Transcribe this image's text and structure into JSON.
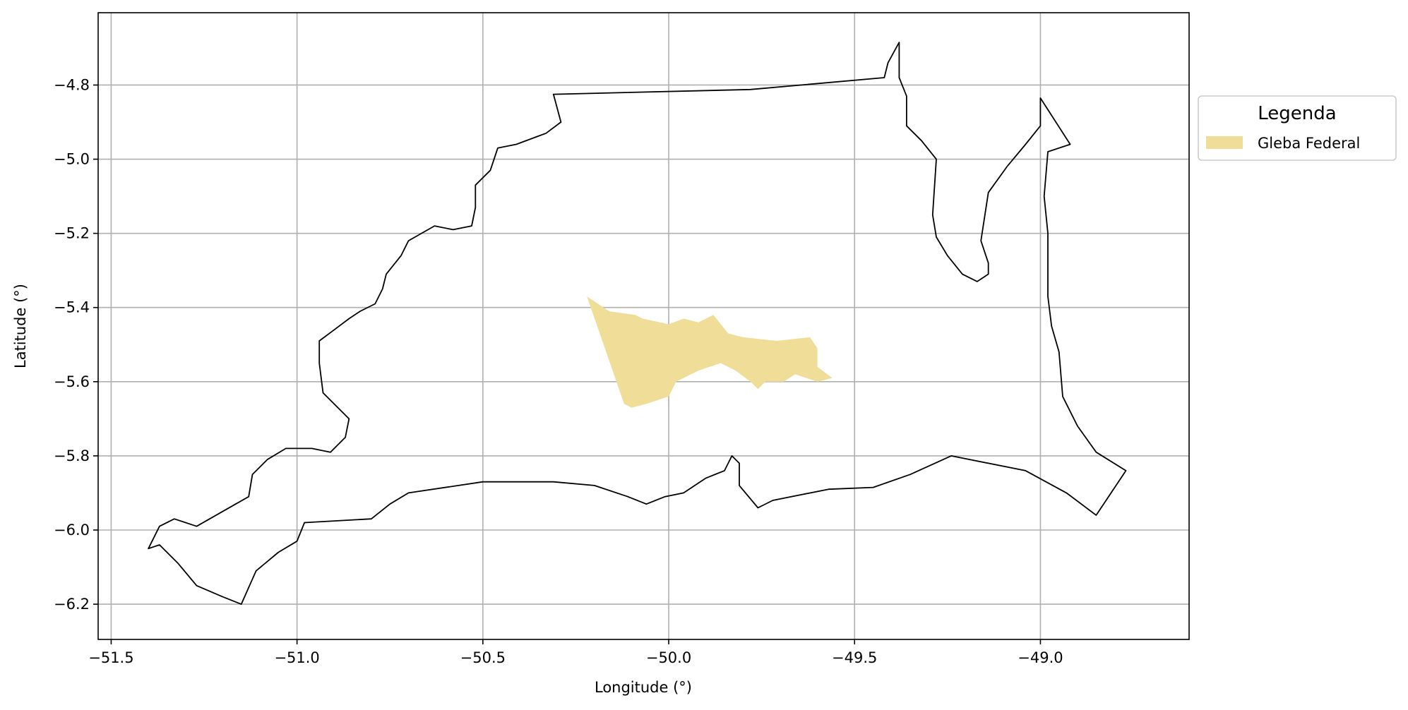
{
  "chart_data": {
    "type": "map",
    "xlabel": "Longitude (°)",
    "ylabel": "Latitude (°)",
    "xlim": [
      -51.535,
      -48.6
    ],
    "ylim": [
      -6.295,
      -4.605
    ],
    "grid": true,
    "xticks": [
      -51.5,
      -51.0,
      -50.5,
      -50.0,
      -49.5,
      -49.0
    ],
    "xtick_labels": [
      "−51.5",
      "−51.0",
      "−50.5",
      "−50.0",
      "−49.5",
      "−49.0"
    ],
    "yticks": [
      -4.8,
      -5.0,
      -5.2,
      -5.4,
      -5.6,
      -5.8,
      -6.0,
      -6.2
    ],
    "ytick_labels": [
      "−4.8",
      "−5.0",
      "−5.2",
      "−5.4",
      "−5.6",
      "−5.8",
      "−6.0",
      "−6.2"
    ],
    "legend": {
      "title": "Legenda",
      "placement": "outside-right-top",
      "entries": [
        {
          "label": "Gleba Federal",
          "color": "#efdd98"
        }
      ]
    },
    "boundary": {
      "color": "#000000",
      "coordinates": [
        [
          -50.31,
          -4.825
        ],
        [
          -49.78,
          -4.812
        ],
        [
          -49.42,
          -4.78
        ],
        [
          -49.41,
          -4.74
        ],
        [
          -49.38,
          -4.685
        ],
        [
          -49.38,
          -4.78
        ],
        [
          -49.36,
          -4.83
        ],
        [
          -49.36,
          -4.91
        ],
        [
          -49.32,
          -4.95
        ],
        [
          -49.28,
          -5.0
        ],
        [
          -49.29,
          -5.15
        ],
        [
          -49.28,
          -5.21
        ],
        [
          -49.25,
          -5.26
        ],
        [
          -49.21,
          -5.31
        ],
        [
          -49.17,
          -5.33
        ],
        [
          -49.14,
          -5.31
        ],
        [
          -49.14,
          -5.28
        ],
        [
          -49.16,
          -5.22
        ],
        [
          -49.14,
          -5.09
        ],
        [
          -49.09,
          -5.02
        ],
        [
          -49.04,
          -4.96
        ],
        [
          -49.0,
          -4.91
        ],
        [
          -49.0,
          -4.835
        ],
        [
          -48.92,
          -4.96
        ],
        [
          -48.98,
          -4.98
        ],
        [
          -48.99,
          -5.1
        ],
        [
          -48.98,
          -5.2
        ],
        [
          -48.98,
          -5.28
        ],
        [
          -48.98,
          -5.37
        ],
        [
          -48.97,
          -5.45
        ],
        [
          -48.95,
          -5.52
        ],
        [
          -48.94,
          -5.64
        ],
        [
          -48.9,
          -5.72
        ],
        [
          -48.85,
          -5.79
        ],
        [
          -48.77,
          -5.84
        ],
        [
          -48.85,
          -5.96
        ],
        [
          -48.93,
          -5.9
        ],
        [
          -49.04,
          -5.84
        ],
        [
          -49.24,
          -5.8
        ],
        [
          -49.35,
          -5.85
        ],
        [
          -49.45,
          -5.885
        ],
        [
          -49.57,
          -5.89
        ],
        [
          -49.72,
          -5.92
        ],
        [
          -49.76,
          -5.94
        ],
        [
          -49.81,
          -5.88
        ],
        [
          -49.81,
          -5.82
        ],
        [
          -49.83,
          -5.8
        ],
        [
          -49.85,
          -5.84
        ],
        [
          -49.9,
          -5.86
        ],
        [
          -49.96,
          -5.9
        ],
        [
          -50.01,
          -5.91
        ],
        [
          -50.06,
          -5.93
        ],
        [
          -50.11,
          -5.91
        ],
        [
          -50.2,
          -5.88
        ],
        [
          -50.31,
          -5.87
        ],
        [
          -50.5,
          -5.87
        ],
        [
          -50.7,
          -5.9
        ],
        [
          -50.75,
          -5.93
        ],
        [
          -50.8,
          -5.97
        ],
        [
          -50.98,
          -5.98
        ],
        [
          -51.0,
          -6.03
        ],
        [
          -51.05,
          -6.06
        ],
        [
          -51.11,
          -6.11
        ],
        [
          -51.15,
          -6.2
        ],
        [
          -51.2,
          -6.18
        ],
        [
          -51.27,
          -6.15
        ],
        [
          -51.32,
          -6.09
        ],
        [
          -51.37,
          -6.04
        ],
        [
          -51.4,
          -6.05
        ],
        [
          -51.37,
          -5.99
        ],
        [
          -51.33,
          -5.97
        ],
        [
          -51.27,
          -5.99
        ],
        [
          -51.2,
          -5.95
        ],
        [
          -51.13,
          -5.91
        ],
        [
          -51.12,
          -5.85
        ],
        [
          -51.08,
          -5.81
        ],
        [
          -51.03,
          -5.78
        ],
        [
          -50.96,
          -5.78
        ],
        [
          -50.91,
          -5.79
        ],
        [
          -50.87,
          -5.75
        ],
        [
          -50.86,
          -5.7
        ],
        [
          -50.89,
          -5.67
        ],
        [
          -50.93,
          -5.63
        ],
        [
          -50.94,
          -5.55
        ],
        [
          -50.94,
          -5.49
        ],
        [
          -50.9,
          -5.46
        ],
        [
          -50.86,
          -5.43
        ],
        [
          -50.83,
          -5.41
        ],
        [
          -50.79,
          -5.39
        ],
        [
          -50.77,
          -5.35
        ],
        [
          -50.76,
          -5.31
        ],
        [
          -50.72,
          -5.26
        ],
        [
          -50.7,
          -5.22
        ],
        [
          -50.63,
          -5.18
        ],
        [
          -50.58,
          -5.19
        ],
        [
          -50.53,
          -5.18
        ],
        [
          -50.52,
          -5.13
        ],
        [
          -50.52,
          -5.07
        ],
        [
          -50.48,
          -5.03
        ],
        [
          -50.46,
          -4.97
        ],
        [
          -50.41,
          -4.96
        ],
        [
          -50.33,
          -4.93
        ],
        [
          -50.29,
          -4.9
        ],
        [
          -50.31,
          -4.825
        ]
      ]
    },
    "features": [
      {
        "name": "Gleba Federal",
        "color": "#efdd98",
        "coordinates": [
          [
            -50.22,
            -5.37
          ],
          [
            -50.16,
            -5.41
          ],
          [
            -50.09,
            -5.42
          ],
          [
            -50.07,
            -5.43
          ],
          [
            -50.0,
            -5.445
          ],
          [
            -49.96,
            -5.43
          ],
          [
            -49.92,
            -5.44
          ],
          [
            -49.88,
            -5.42
          ],
          [
            -49.84,
            -5.47
          ],
          [
            -49.8,
            -5.48
          ],
          [
            -49.71,
            -5.49
          ],
          [
            -49.62,
            -5.48
          ],
          [
            -49.6,
            -5.51
          ],
          [
            -49.6,
            -5.56
          ],
          [
            -49.56,
            -5.59
          ],
          [
            -49.6,
            -5.6
          ],
          [
            -49.66,
            -5.58
          ],
          [
            -49.69,
            -5.6
          ],
          [
            -49.74,
            -5.6
          ],
          [
            -49.76,
            -5.62
          ],
          [
            -49.78,
            -5.6
          ],
          [
            -49.82,
            -5.57
          ],
          [
            -49.86,
            -5.55
          ],
          [
            -49.92,
            -5.57
          ],
          [
            -49.98,
            -5.6
          ],
          [
            -50.0,
            -5.64
          ],
          [
            -50.06,
            -5.66
          ],
          [
            -50.1,
            -5.67
          ],
          [
            -50.12,
            -5.66
          ]
        ]
      }
    ]
  }
}
